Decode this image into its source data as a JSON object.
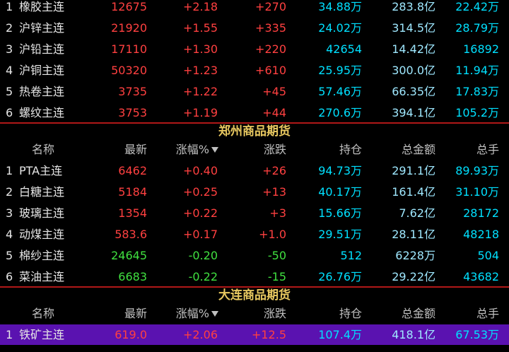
{
  "sections": [
    {
      "rows": [
        {
          "cells": [
            "1",
            "橡胶主连",
            "12675",
            "+2.18",
            "+270",
            "34.88万",
            "283.8亿",
            "22.42万"
          ],
          "color": "#ff4040"
        },
        {
          "cells": [
            "2",
            "沪锌主连",
            "21920",
            "+1.55",
            "+335",
            "24.02万",
            "314.5亿",
            "28.79万"
          ],
          "color": "#ff4040"
        },
        {
          "cells": [
            "3",
            "沪铅主连",
            "17110",
            "+1.30",
            "+220",
            "42654",
            "14.42亿",
            "16892"
          ],
          "color": "#ff4040"
        },
        {
          "cells": [
            "4",
            "沪铜主连",
            "50320",
            "+1.23",
            "+610",
            "25.95万",
            "300.0亿",
            "11.94万"
          ],
          "color": "#ff4040"
        },
        {
          "cells": [
            "5",
            "热卷主连",
            "3735",
            "+1.22",
            "+45",
            "57.46万",
            "66.35亿",
            "17.83万"
          ],
          "color": "#ff4040"
        },
        {
          "cells": [
            "6",
            "螺纹主连",
            "3753",
            "+1.19",
            "+44",
            "270.6万",
            "394.1亿",
            "105.2万"
          ],
          "color": "#ff4040"
        }
      ]
    },
    {
      "title": "郑州商品期货",
      "headers": [
        "名称",
        "最新",
        "涨幅%",
        "涨跌",
        "持仓",
        "总金额",
        "总手"
      ],
      "rows": [
        {
          "cells": [
            "1",
            "PTA主连",
            "6462",
            "+0.40",
            "+26",
            "94.73万",
            "291.1亿",
            "89.93万"
          ],
          "color": "#ff4040"
        },
        {
          "cells": [
            "2",
            "白糖主连",
            "5184",
            "+0.25",
            "+13",
            "40.17万",
            "161.4亿",
            "31.10万"
          ],
          "color": "#ff4040"
        },
        {
          "cells": [
            "3",
            "玻璃主连",
            "1354",
            "+0.22",
            "+3",
            "15.66万",
            "7.62亿",
            "28172"
          ],
          "color": "#ff4040"
        },
        {
          "cells": [
            "4",
            "动煤主连",
            "583.6",
            "+0.17",
            "+1.0",
            "29.51万",
            "28.11亿",
            "48218"
          ],
          "color": "#ff4040"
        },
        {
          "cells": [
            "5",
            "棉纱主连",
            "24645",
            "-0.20",
            "-50",
            "512",
            "6228万",
            "504"
          ],
          "color": "#40e040"
        },
        {
          "cells": [
            "6",
            "菜油主连",
            "6683",
            "-0.22",
            "-15",
            "26.76万",
            "29.22亿",
            "43682"
          ],
          "color": "#40e040"
        }
      ]
    },
    {
      "title": "大连商品期货",
      "headers": [
        "名称",
        "最新",
        "涨幅%",
        "涨跌",
        "持仓",
        "总金额",
        "总手"
      ],
      "rows": [
        {
          "cells": [
            "1",
            "铁矿主连",
            "619.0",
            "+2.06",
            "+12.5",
            "107.4万",
            "418.1亿",
            "67.53万"
          ],
          "color": "#ff4040",
          "highlight": "#5a12b0"
        }
      ]
    }
  ]
}
